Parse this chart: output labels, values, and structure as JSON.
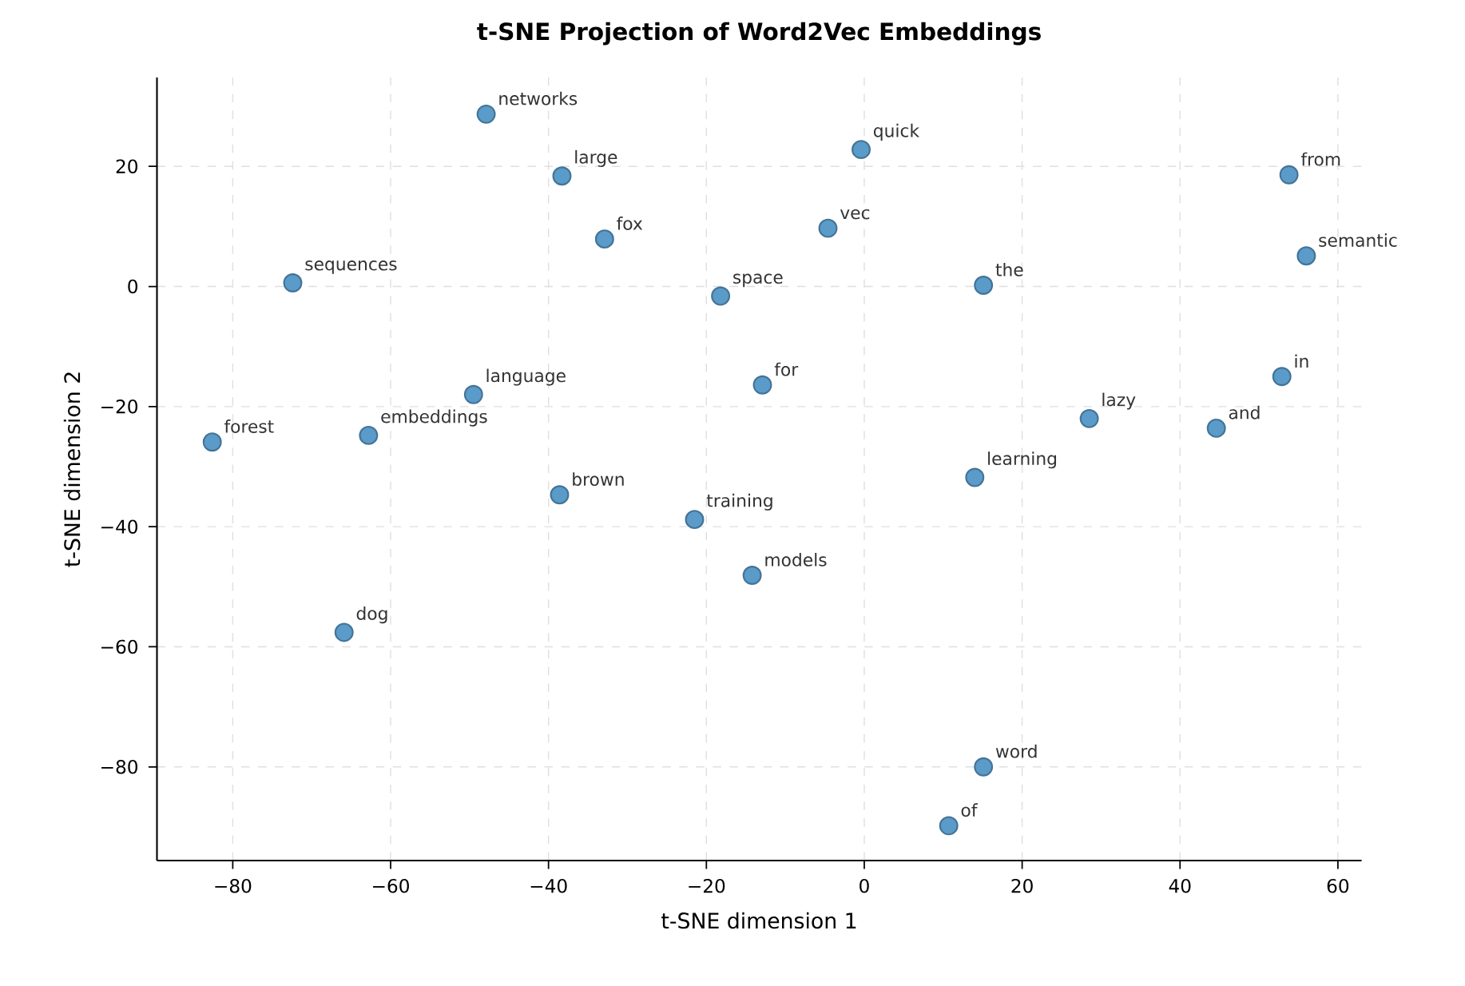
{
  "chart_data": {
    "type": "scatter",
    "title": "t-SNE Projection of Word2Vec Embeddings",
    "xlabel": "t-SNE dimension 1",
    "ylabel": "t-SNE dimension 2",
    "xlim": [
      -89.6,
      63.0
    ],
    "ylim": [
      -95.6,
      34.8
    ],
    "xticks": [
      {
        "value": -80,
        "label": "−80"
      },
      {
        "value": -60,
        "label": "−60"
      },
      {
        "value": -40,
        "label": "−40"
      },
      {
        "value": -20,
        "label": "−20"
      },
      0,
      20,
      40,
      60
    ],
    "yticks": [
      {
        "value": -80,
        "label": "−80"
      },
      {
        "value": -60,
        "label": "−60"
      },
      {
        "value": -40,
        "label": "−40"
      },
      {
        "value": -20,
        "label": "−20"
      },
      0,
      20
    ],
    "grid": true,
    "marker": "circle",
    "series": [
      {
        "color": "#5b9bc9",
        "x": [
          -47.9,
          -38.3,
          -0.4,
          53.8,
          -32.9,
          -4.6,
          -72.4,
          -18.2,
          15.1,
          56.0,
          52.9,
          -49.5,
          -12.9,
          28.5,
          44.6,
          -82.6,
          -62.8,
          14.0,
          -38.6,
          -21.5,
          -14.2,
          -65.9,
          15.1,
          10.7
        ],
        "values": [
          28.7,
          18.4,
          22.8,
          18.6,
          7.9,
          9.7,
          0.6,
          -1.6,
          0.2,
          5.1,
          -15.0,
          -18.0,
          -16.4,
          -22.0,
          -23.6,
          -25.9,
          -24.8,
          -31.8,
          -34.7,
          -38.8,
          -48.1,
          -57.6,
          -80.0,
          -89.8
        ]
      }
    ],
    "annotations": [
      {
        "text": "networks",
        "x": -47.9,
        "y": 28.7
      },
      {
        "text": "large",
        "x": -38.3,
        "y": 18.4
      },
      {
        "text": "quick",
        "x": -0.4,
        "y": 22.8
      },
      {
        "text": "from",
        "x": 53.8,
        "y": 18.6
      },
      {
        "text": "fox",
        "x": -32.9,
        "y": 7.9
      },
      {
        "text": "vec",
        "x": -4.6,
        "y": 9.7
      },
      {
        "text": "sequences",
        "x": -72.4,
        "y": 0.6
      },
      {
        "text": "space",
        "x": -18.2,
        "y": -1.6
      },
      {
        "text": "the",
        "x": 15.1,
        "y": 0.2
      },
      {
        "text": "semantic",
        "x": 56.0,
        "y": 5.1
      },
      {
        "text": "in",
        "x": 52.9,
        "y": -15.0
      },
      {
        "text": "language",
        "x": -49.5,
        "y": -18.0
      },
      {
        "text": "for",
        "x": -12.9,
        "y": -16.4
      },
      {
        "text": "lazy",
        "x": 28.5,
        "y": -22.0
      },
      {
        "text": "and",
        "x": 44.6,
        "y": -23.6
      },
      {
        "text": "forest",
        "x": -82.6,
        "y": -25.9
      },
      {
        "text": "embeddings",
        "x": -62.8,
        "y": -24.8
      },
      {
        "text": "learning",
        "x": 14.0,
        "y": -31.8
      },
      {
        "text": "brown",
        "x": -38.6,
        "y": -34.7
      },
      {
        "text": "training",
        "x": -21.5,
        "y": -38.8
      },
      {
        "text": "models",
        "x": -14.2,
        "y": -48.1
      },
      {
        "text": "dog",
        "x": -65.9,
        "y": -57.6
      },
      {
        "text": "word",
        "x": 15.1,
        "y": -80.0
      },
      {
        "text": "of",
        "x": 10.7,
        "y": -89.8
      }
    ]
  }
}
